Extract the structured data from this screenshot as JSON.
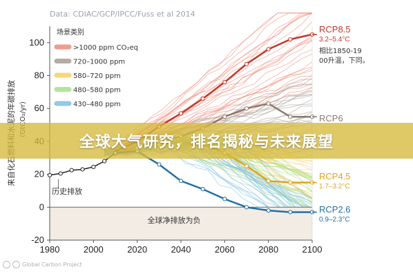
{
  "overlay": {
    "banner_text": "全球大气研究，排名揭秘与未来展望"
  },
  "watermark": {
    "text": "Global Carbon Project"
  },
  "colors": {
    "rcp85": "#c0392b",
    "rcp6": "#8c7b70",
    "rcp45": "#e3a21a",
    "rcp26": "#1f6fa8",
    "banner": "#d6ba3c"
  },
  "chart_data": {
    "type": "line",
    "source": "Data: CDIAC/GCP/IPCC/Fuss et al 2014",
    "ylabel": "来自化石燃料和水泥的年碳排放",
    "ylabel_unit": "(GtCO₂/yr)",
    "xlim": [
      1980,
      2100
    ],
    "ylim": [
      -20,
      110
    ],
    "x_ticks": [
      "1980",
      "2000",
      "2020",
      "2040",
      "2060",
      "2080",
      "2100"
    ],
    "y_ticks": [
      "-20",
      "0",
      "20",
      "40",
      "60",
      "80",
      "100"
    ],
    "negative_region_label": "全球净排放为负",
    "history_label": "历史排放",
    "legend": {
      "title": "场景类别",
      "items": [
        {
          "label": ">1000 ppm CO₂eq",
          "color": "#f08a7a"
        },
        {
          "label": "720–1000 ppm",
          "color": "#a89e96"
        },
        {
          "label": "580–720 ppm",
          "color": "#f5cf6b"
        },
        {
          "label": "480–580 ppm",
          "color": "#a8e08a"
        },
        {
          "label": "430–480 ppm",
          "color": "#7fc1e3"
        }
      ]
    },
    "note": "相比1850-1900升温，下同。",
    "history": {
      "x": [
        1980,
        1985,
        1990,
        1995,
        2000,
        2005,
        2010
      ],
      "values": [
        19.5,
        20.5,
        22.5,
        23,
        24.5,
        28,
        33
      ]
    },
    "series": [
      {
        "name": "RCP8.5",
        "range": "3.2–5.4°C",
        "color": "#c0392b",
        "x": [
          2010,
          2020,
          2030,
          2040,
          2050,
          2060,
          2070,
          2080,
          2090,
          2100
        ],
        "values": [
          34,
          40,
          49,
          57,
          66,
          76,
          87,
          96,
          102,
          105
        ]
      },
      {
        "name": "RCP6",
        "range": "",
        "color": "#8c7b70",
        "x": [
          2010,
          2020,
          2030,
          2040,
          2050,
          2060,
          2070,
          2080,
          2090,
          2100
        ],
        "values": [
          33,
          36,
          40,
          43,
          48,
          55,
          60,
          63,
          55,
          55
        ]
      },
      {
        "name": "RCP4.5",
        "range": "1.7–3.2°C",
        "color": "#e3a21a",
        "x": [
          2010,
          2020,
          2030,
          2040,
          2050,
          2060,
          2070,
          2080,
          2090,
          2100
        ],
        "values": [
          33,
          36,
          38,
          39,
          38,
          33,
          25,
          16,
          15,
          15
        ]
      },
      {
        "name": "RCP2.6",
        "range": "0.9–2.3°C",
        "color": "#1f6fa8",
        "x": [
          2010,
          2020,
          2030,
          2040,
          2050,
          2060,
          2070,
          2080,
          2090,
          2100
        ],
        "values": [
          33,
          34,
          26,
          16,
          11,
          5,
          0,
          -2,
          -3,
          -3
        ]
      }
    ]
  }
}
